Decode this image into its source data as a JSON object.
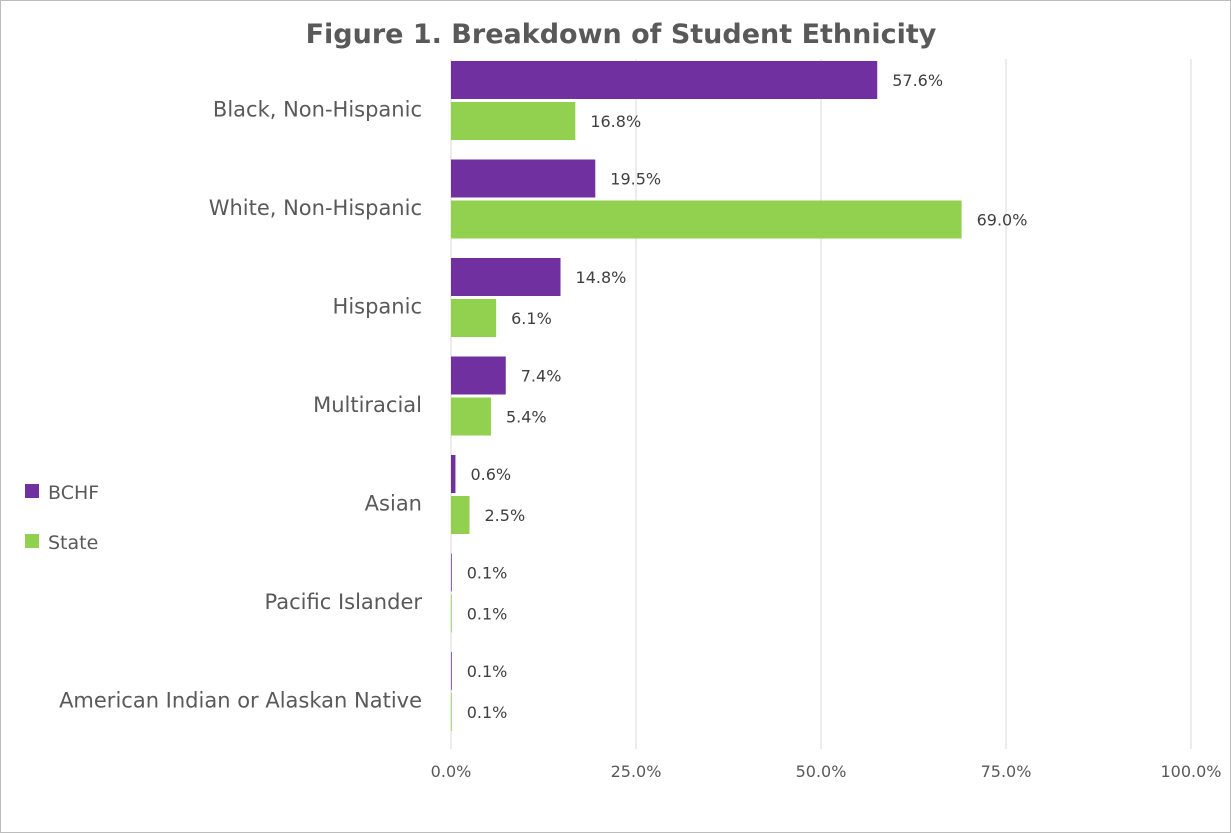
{
  "chart_data": {
    "type": "bar",
    "orientation": "horizontal",
    "title": "Figure 1. Breakdown of Student Ethnicity",
    "categories": [
      "Black, Non-Hispanic",
      "White, Non-Hispanic",
      "Hispanic",
      "Multiracial",
      "Asian",
      "Pacific Islander",
      "American Indian or Alaskan Native"
    ],
    "series": [
      {
        "name": "BCHF",
        "color": "#7030a0",
        "values": [
          57.6,
          19.5,
          14.8,
          7.4,
          0.6,
          0.1,
          0.1
        ],
        "labels": [
          "57.6%",
          "19.5%",
          "14.8%",
          "7.4%",
          "0.6%",
          "0.1%",
          "0.1%"
        ]
      },
      {
        "name": "State",
        "color": "#92d050",
        "values": [
          16.8,
          69.0,
          6.1,
          5.4,
          2.5,
          0.1,
          0.1
        ],
        "labels": [
          "16.8%",
          "69.0%",
          "6.1%",
          "5.4%",
          "2.5%",
          "0.1%",
          "0.1%"
        ]
      }
    ],
    "xlim": [
      0,
      100
    ],
    "x_ticks": [
      "0.0%",
      "25.0%",
      "50.0%",
      "75.0%",
      "100.0%"
    ],
    "x_tick_values": [
      0,
      25,
      50,
      75,
      100
    ],
    "grid": "vertical",
    "legend_position": "left"
  }
}
